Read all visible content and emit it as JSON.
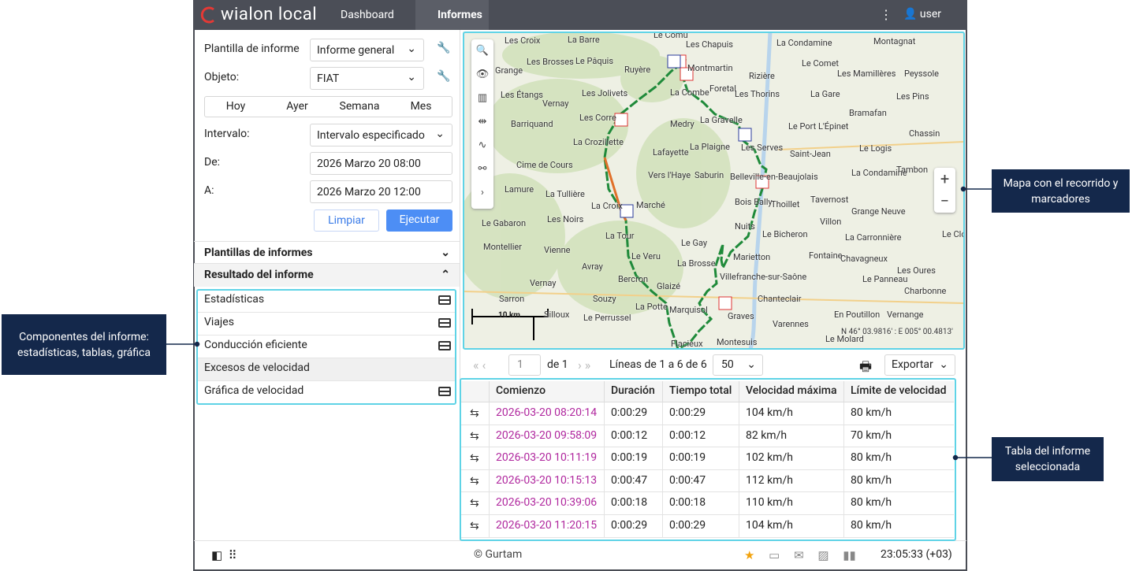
{
  "header": {
    "logo": "wialon local",
    "nav": [
      "Dashboard",
      "Informes"
    ],
    "user": "user"
  },
  "form": {
    "fields": [
      {
        "label": "Plantilla de informe",
        "value": "Informe general"
      },
      {
        "label": "Objeto:",
        "value": "FIAT"
      },
      {
        "label": "Intervalo:",
        "value": "Intervalo especificado"
      },
      {
        "label": "De:",
        "value": "2026 Marzo 20 08:00"
      },
      {
        "label": "A:",
        "value": "2026 Marzo 20 12:00"
      }
    ],
    "periods": [
      "Hoy",
      "Ayer",
      "Semana",
      "Mes"
    ],
    "buttons": [
      "Limpiar",
      "Ejecutar"
    ]
  },
  "sections": [
    "Plantillas de informes",
    "Resultado del informe"
  ],
  "components": [
    "Estadísticas",
    "Viajes",
    "Conducción eficiente",
    "Excesos de velocidad",
    "Gráfica de velocidad"
  ],
  "map": {
    "towns": [
      "Les Croix",
      "La Barre",
      "Le Comu",
      "Les Chapuis",
      "La Condamine",
      "Montagnat",
      "Les Brosses",
      "Le Pâquis",
      "Ruyère",
      "Montmartin",
      "Le Comet",
      "Les Mamillères",
      "Peyssole",
      "Grange",
      "Rizière",
      "Les Étangs",
      "Les Jolivets",
      "La Combe",
      "Foretal",
      "Les Thorins",
      "La Gare",
      "Les Pins",
      "Vernay",
      "Bramafan",
      "Les Corre",
      "La Gravelle",
      "Le Port L'Épinet",
      "Barriquand",
      "Medry",
      "Chassin",
      "La Crozillette",
      "La Plaigne",
      "Les Serves",
      "Saint-Jean",
      "Le Logis",
      "Lafayette",
      "Cime de Cours",
      "Vers l'Haye",
      "Saburin",
      "Belleville-en-Beaujolais",
      "La Condamine",
      "Tambon",
      "Lamure",
      "La Tullière",
      "Tavernost",
      "Bois Bally",
      "Thoillet",
      "La Croix",
      "Marché",
      "Grange Neuve",
      "Le Gabaron",
      "Les Noirs",
      "Nuits",
      "Villon",
      "Le Bicheron",
      "La Carronnière",
      "Le Clou",
      "La Tour",
      "Le Gay",
      "Montellier",
      "Vienne",
      "Marietton",
      "Fontaine",
      "Chavagneux",
      "Le Veru",
      "Avray",
      "La Brosse",
      "Les Oures",
      "Bercron",
      "Villefranche-sur-Saône",
      "Le Panneau",
      "Vernay",
      "Glaizé",
      "Charbonne",
      "Sarron",
      "Souzy",
      "Chanteclair",
      "Marquisol",
      "La Potte",
      "Silloux",
      "Le Perrussel",
      "Graves",
      "En Poutillon",
      "Vernange",
      "Varennes",
      "Le Molard",
      "Montesuis",
      "Flacieux"
    ],
    "scale": "10 km",
    "coordinates": "N 46° 03.9816' : E 005° 00.4813'"
  },
  "pager": {
    "page": "1",
    "of": "de 1",
    "lines": "Líneas de 1 a 6 de 6",
    "per_page": "50",
    "export": "Exportar"
  },
  "table": {
    "columns": [
      "Comienzo",
      "Duración",
      "Tiempo total",
      "Velocidad máxima",
      "Límite de velocidad"
    ],
    "rows": [
      [
        "2026-03-20 08:20:14",
        "0:00:29",
        "0:00:29",
        "104 km/h",
        "80 km/h"
      ],
      [
        "2026-03-20 09:58:09",
        "0:00:12",
        "0:00:12",
        "82 km/h",
        "70 km/h"
      ],
      [
        "2026-03-20 10:11:19",
        "0:00:19",
        "0:00:19",
        "102 km/h",
        "80 km/h"
      ],
      [
        "2026-03-20 10:15:13",
        "0:00:47",
        "0:00:47",
        "112 km/h",
        "80 km/h"
      ],
      [
        "2026-03-20 10:39:06",
        "0:00:18",
        "0:00:18",
        "110 km/h",
        "80 km/h"
      ],
      [
        "2026-03-20 11:20:15",
        "0:00:29",
        "0:00:29",
        "104 km/h",
        "80 km/h"
      ]
    ]
  },
  "footer": {
    "copyright": "© Gurtam",
    "time": "23:05:33 (+03)"
  },
  "callouts": [
    "Componentes del informe: estadísticas, tablas, gráfica",
    "Mapa con el recorrido y marcadores",
    "Tabla del informe seleccionada"
  ]
}
